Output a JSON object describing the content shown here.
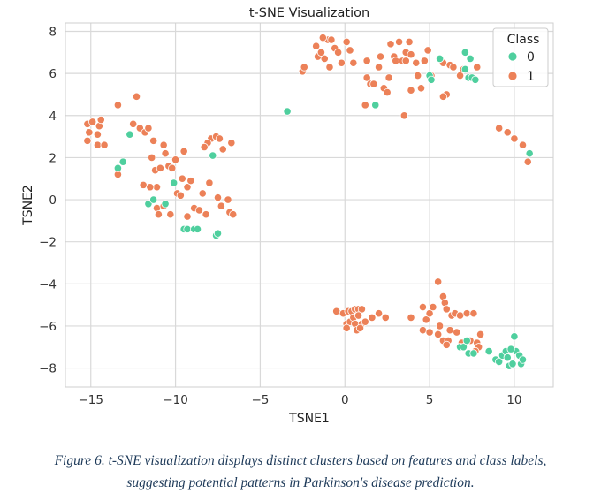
{
  "chart_data": {
    "type": "scatter",
    "title": "t-SNE Visualization",
    "xlabel": "TSNE1",
    "ylabel": "TSNE2",
    "xlim": [
      -16.5,
      12.3
    ],
    "ylim": [
      -8.9,
      8.4
    ],
    "xticks": [
      -15,
      -10,
      -5,
      0,
      5,
      10
    ],
    "yticks": [
      -8,
      -6,
      -4,
      -2,
      0,
      2,
      4,
      6,
      8
    ],
    "xtick_labels": [
      "−15",
      "−10",
      "−5",
      "0",
      "5",
      "10"
    ],
    "ytick_labels": [
      "−8",
      "−6",
      "−4",
      "−2",
      "0",
      "2",
      "4",
      "6",
      "8"
    ],
    "grid": true,
    "legend": {
      "title": "Class",
      "placement": "top-right"
    },
    "series": [
      {
        "name": "0",
        "color": "#4fcf9e",
        "points": [
          [
            -13.4,
            1.5
          ],
          [
            -13.1,
            1.8
          ],
          [
            -12.7,
            3.1
          ],
          [
            -11.6,
            -0.2
          ],
          [
            -11.3,
            0.0
          ],
          [
            -10.6,
            -0.2
          ],
          [
            -10.1,
            0.8
          ],
          [
            -9.5,
            -1.4
          ],
          [
            -9.3,
            -1.4
          ],
          [
            -8.9,
            -1.4
          ],
          [
            -8.7,
            -1.4
          ],
          [
            -7.8,
            2.1
          ],
          [
            -7.6,
            -1.7
          ],
          [
            -7.5,
            -1.6
          ],
          [
            -3.4,
            4.2
          ],
          [
            1.8,
            4.5
          ],
          [
            5.0,
            5.9
          ],
          [
            5.1,
            5.7
          ],
          [
            5.6,
            6.7
          ],
          [
            7.1,
            6.2
          ],
          [
            7.3,
            5.8
          ],
          [
            7.4,
            6.7
          ],
          [
            7.5,
            5.8
          ],
          [
            7.7,
            5.7
          ],
          [
            10.9,
            2.2
          ],
          [
            6.8,
            -7.0
          ],
          [
            7.0,
            -7.0
          ],
          [
            7.2,
            -6.7
          ],
          [
            7.3,
            -7.3
          ],
          [
            7.6,
            -7.3
          ],
          [
            8.5,
            -7.2
          ],
          [
            8.9,
            -7.6
          ],
          [
            9.1,
            -7.7
          ],
          [
            9.3,
            -7.4
          ],
          [
            9.5,
            -7.2
          ],
          [
            9.6,
            -7.5
          ],
          [
            9.7,
            -7.9
          ],
          [
            9.9,
            -7.8
          ],
          [
            10.0,
            -6.5
          ],
          [
            10.1,
            -7.2
          ],
          [
            10.3,
            -7.4
          ],
          [
            10.4,
            -7.8
          ],
          [
            10.5,
            -7.6
          ],
          [
            9.8,
            -7.1
          ],
          [
            7.1,
            7.0
          ]
        ]
      },
      {
        "name": "1",
        "color": "#ec8158",
        "points": [
          [
            -15.2,
            2.8
          ],
          [
            -15.1,
            3.2
          ],
          [
            -15.2,
            3.6
          ],
          [
            -14.9,
            3.7
          ],
          [
            -14.5,
            3.5
          ],
          [
            -14.4,
            3.8
          ],
          [
            -14.6,
            2.6
          ],
          [
            -14.2,
            2.6
          ],
          [
            -14.6,
            3.1
          ],
          [
            -13.4,
            4.5
          ],
          [
            -13.4,
            1.2
          ],
          [
            -12.5,
            3.6
          ],
          [
            -12.3,
            4.9
          ],
          [
            -12.1,
            3.4
          ],
          [
            -11.8,
            3.2
          ],
          [
            -11.6,
            3.4
          ],
          [
            -11.3,
            2.8
          ],
          [
            -11.4,
            2.0
          ],
          [
            -11.2,
            1.4
          ],
          [
            -11.1,
            0.6
          ],
          [
            -10.9,
            1.5
          ],
          [
            -10.7,
            2.6
          ],
          [
            -10.6,
            2.2
          ],
          [
            -10.4,
            1.6
          ],
          [
            -10.2,
            1.5
          ],
          [
            -10.0,
            1.9
          ],
          [
            -11.9,
            0.7
          ],
          [
            -11.5,
            0.6
          ],
          [
            -11.1,
            -0.4
          ],
          [
            -10.7,
            -0.3
          ],
          [
            -10.3,
            -0.7
          ],
          [
            -11.0,
            -0.7
          ],
          [
            -9.9,
            0.3
          ],
          [
            -9.6,
            1.0
          ],
          [
            -9.5,
            2.3
          ],
          [
            -9.3,
            0.6
          ],
          [
            -9.1,
            0.9
          ],
          [
            -9.3,
            -0.8
          ],
          [
            -8.9,
            -0.4
          ],
          [
            -8.4,
            0.3
          ],
          [
            -8.2,
            -0.7
          ],
          [
            -8.0,
            0.8
          ],
          [
            -7.9,
            2.9
          ],
          [
            -7.6,
            3.0
          ],
          [
            -7.4,
            2.9
          ],
          [
            -7.2,
            2.4
          ],
          [
            -7.5,
            0.1
          ],
          [
            -7.3,
            -0.3
          ],
          [
            -6.9,
            0.0
          ],
          [
            -6.8,
            -0.6
          ],
          [
            -6.7,
            2.7
          ],
          [
            -6.6,
            -0.7
          ],
          [
            -8.1,
            2.7
          ],
          [
            -8.3,
            2.5
          ],
          [
            -8.6,
            -0.5
          ],
          [
            -9.7,
            0.2
          ],
          [
            -2.5,
            6.1
          ],
          [
            -2.4,
            6.3
          ],
          [
            -1.7,
            7.3
          ],
          [
            -1.6,
            6.8
          ],
          [
            -1.4,
            7.0
          ],
          [
            -1.2,
            6.7
          ],
          [
            -1.0,
            7.6
          ],
          [
            -0.8,
            7.6
          ],
          [
            -0.6,
            7.2
          ],
          [
            -0.4,
            7.0
          ],
          [
            -0.2,
            6.5
          ],
          [
            0.1,
            7.5
          ],
          [
            0.3,
            7.1
          ],
          [
            0.5,
            6.5
          ],
          [
            -1.3,
            7.7
          ],
          [
            -0.9,
            6.3
          ],
          [
            1.3,
            5.8
          ],
          [
            1.5,
            5.5
          ],
          [
            1.7,
            5.5
          ],
          [
            2.0,
            6.3
          ],
          [
            2.1,
            6.8
          ],
          [
            2.3,
            5.3
          ],
          [
            2.6,
            5.8
          ],
          [
            2.5,
            5.1
          ],
          [
            2.7,
            7.4
          ],
          [
            2.9,
            6.8
          ],
          [
            3.0,
            6.6
          ],
          [
            3.2,
            7.5
          ],
          [
            3.4,
            6.6
          ],
          [
            3.6,
            7.0
          ],
          [
            3.6,
            6.6
          ],
          [
            3.9,
            6.9
          ],
          [
            3.8,
            7.5
          ],
          [
            4.2,
            6.5
          ],
          [
            4.3,
            5.9
          ],
          [
            4.5,
            5.3
          ],
          [
            4.9,
            7.1
          ],
          [
            5.1,
            5.9
          ],
          [
            5.8,
            6.5
          ],
          [
            6.0,
            5.0
          ],
          [
            6.2,
            6.4
          ],
          [
            6.4,
            6.3
          ],
          [
            6.8,
            5.9
          ],
          [
            7.0,
            6.2
          ],
          [
            7.8,
            6.3
          ],
          [
            1.2,
            4.5
          ],
          [
            3.5,
            4.0
          ],
          [
            3.9,
            5.2
          ],
          [
            1.3,
            6.6
          ],
          [
            4.7,
            6.6
          ],
          [
            5.8,
            4.9
          ],
          [
            9.1,
            3.4
          ],
          [
            9.6,
            3.2
          ],
          [
            10.0,
            2.9
          ],
          [
            10.5,
            2.6
          ],
          [
            10.8,
            1.8
          ],
          [
            -0.5,
            -5.3
          ],
          [
            -0.1,
            -5.4
          ],
          [
            0.2,
            -5.3
          ],
          [
            0.4,
            -5.3
          ],
          [
            0.6,
            -5.2
          ],
          [
            0.8,
            -5.2
          ],
          [
            1.0,
            -5.2
          ],
          [
            0.1,
            -5.9
          ],
          [
            0.3,
            -5.8
          ],
          [
            0.5,
            -5.6
          ],
          [
            0.6,
            -5.9
          ],
          [
            0.8,
            -5.5
          ],
          [
            1.0,
            -5.9
          ],
          [
            1.2,
            -5.8
          ],
          [
            0.1,
            -6.1
          ],
          [
            0.7,
            -6.2
          ],
          [
            0.9,
            -6.1
          ],
          [
            2.0,
            -5.4
          ],
          [
            2.4,
            -5.6
          ],
          [
            1.6,
            -5.6
          ],
          [
            3.9,
            -5.6
          ],
          [
            4.6,
            -5.1
          ],
          [
            4.8,
            -5.7
          ],
          [
            5.0,
            -5.4
          ],
          [
            5.2,
            -5.1
          ],
          [
            5.5,
            -3.9
          ],
          [
            5.8,
            -4.6
          ],
          [
            5.9,
            -4.9
          ],
          [
            6.0,
            -5.2
          ],
          [
            6.3,
            -5.5
          ],
          [
            6.5,
            -5.4
          ],
          [
            6.8,
            -5.5
          ],
          [
            7.2,
            -5.4
          ],
          [
            7.6,
            -5.4
          ],
          [
            4.6,
            -6.2
          ],
          [
            5.0,
            -6.3
          ],
          [
            5.5,
            -6.4
          ],
          [
            5.8,
            -6.7
          ],
          [
            6.1,
            -6.7
          ],
          [
            6.2,
            -6.2
          ],
          [
            6.6,
            -6.3
          ],
          [
            6.9,
            -6.8
          ],
          [
            7.4,
            -6.7
          ],
          [
            7.8,
            -6.8
          ],
          [
            8.0,
            -6.4
          ],
          [
            7.9,
            -7.0
          ],
          [
            7.7,
            -7.2
          ],
          [
            5.6,
            -6.0
          ],
          [
            6.0,
            -6.9
          ]
        ]
      }
    ]
  },
  "caption": {
    "line1": "Figure 6. t-SNE visualization displays distinct clusters based on features and class labels,",
    "line2": "suggesting potential patterns in Parkinson's disease prediction."
  }
}
